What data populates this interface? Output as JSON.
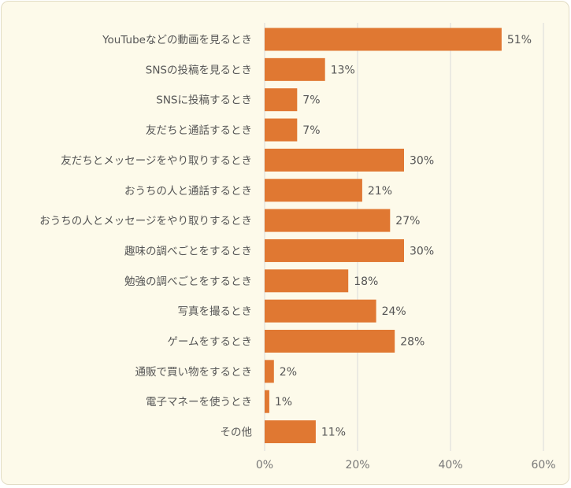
{
  "chart_data": {
    "type": "bar",
    "orientation": "horizontal",
    "categories": [
      "YouTubeなどの動画を見るとき",
      "SNSの投稿を見るとき",
      "SNSに投稿するとき",
      "友だちと通話するとき",
      "友だちとメッセージをやり取りするとき",
      "おうちの人と通話するとき",
      "おうちの人とメッセージをやり取りするとき",
      "趣味の調べごとをするとき",
      "勉強の調べごとをするとき",
      "写真を撮るとき",
      "ゲームをするとき",
      "通販で買い物をするとき",
      "電子マネーを使うとき",
      "その他"
    ],
    "values": [
      51,
      13,
      7,
      7,
      30,
      21,
      27,
      30,
      18,
      24,
      28,
      2,
      1,
      11
    ],
    "value_labels": [
      "51%",
      "13%",
      "7%",
      "7%",
      "30%",
      "21%",
      "27%",
      "30%",
      "18%",
      "24%",
      "28%",
      "2%",
      "1%",
      "11%"
    ],
    "xticks": [
      0,
      20,
      40,
      60
    ],
    "xtick_labels": [
      "0%",
      "20%",
      "40%",
      "60%"
    ],
    "xlim": [
      0,
      60
    ],
    "grid": true,
    "bar_color": "#e07832",
    "background_color": "#fdfaea"
  }
}
